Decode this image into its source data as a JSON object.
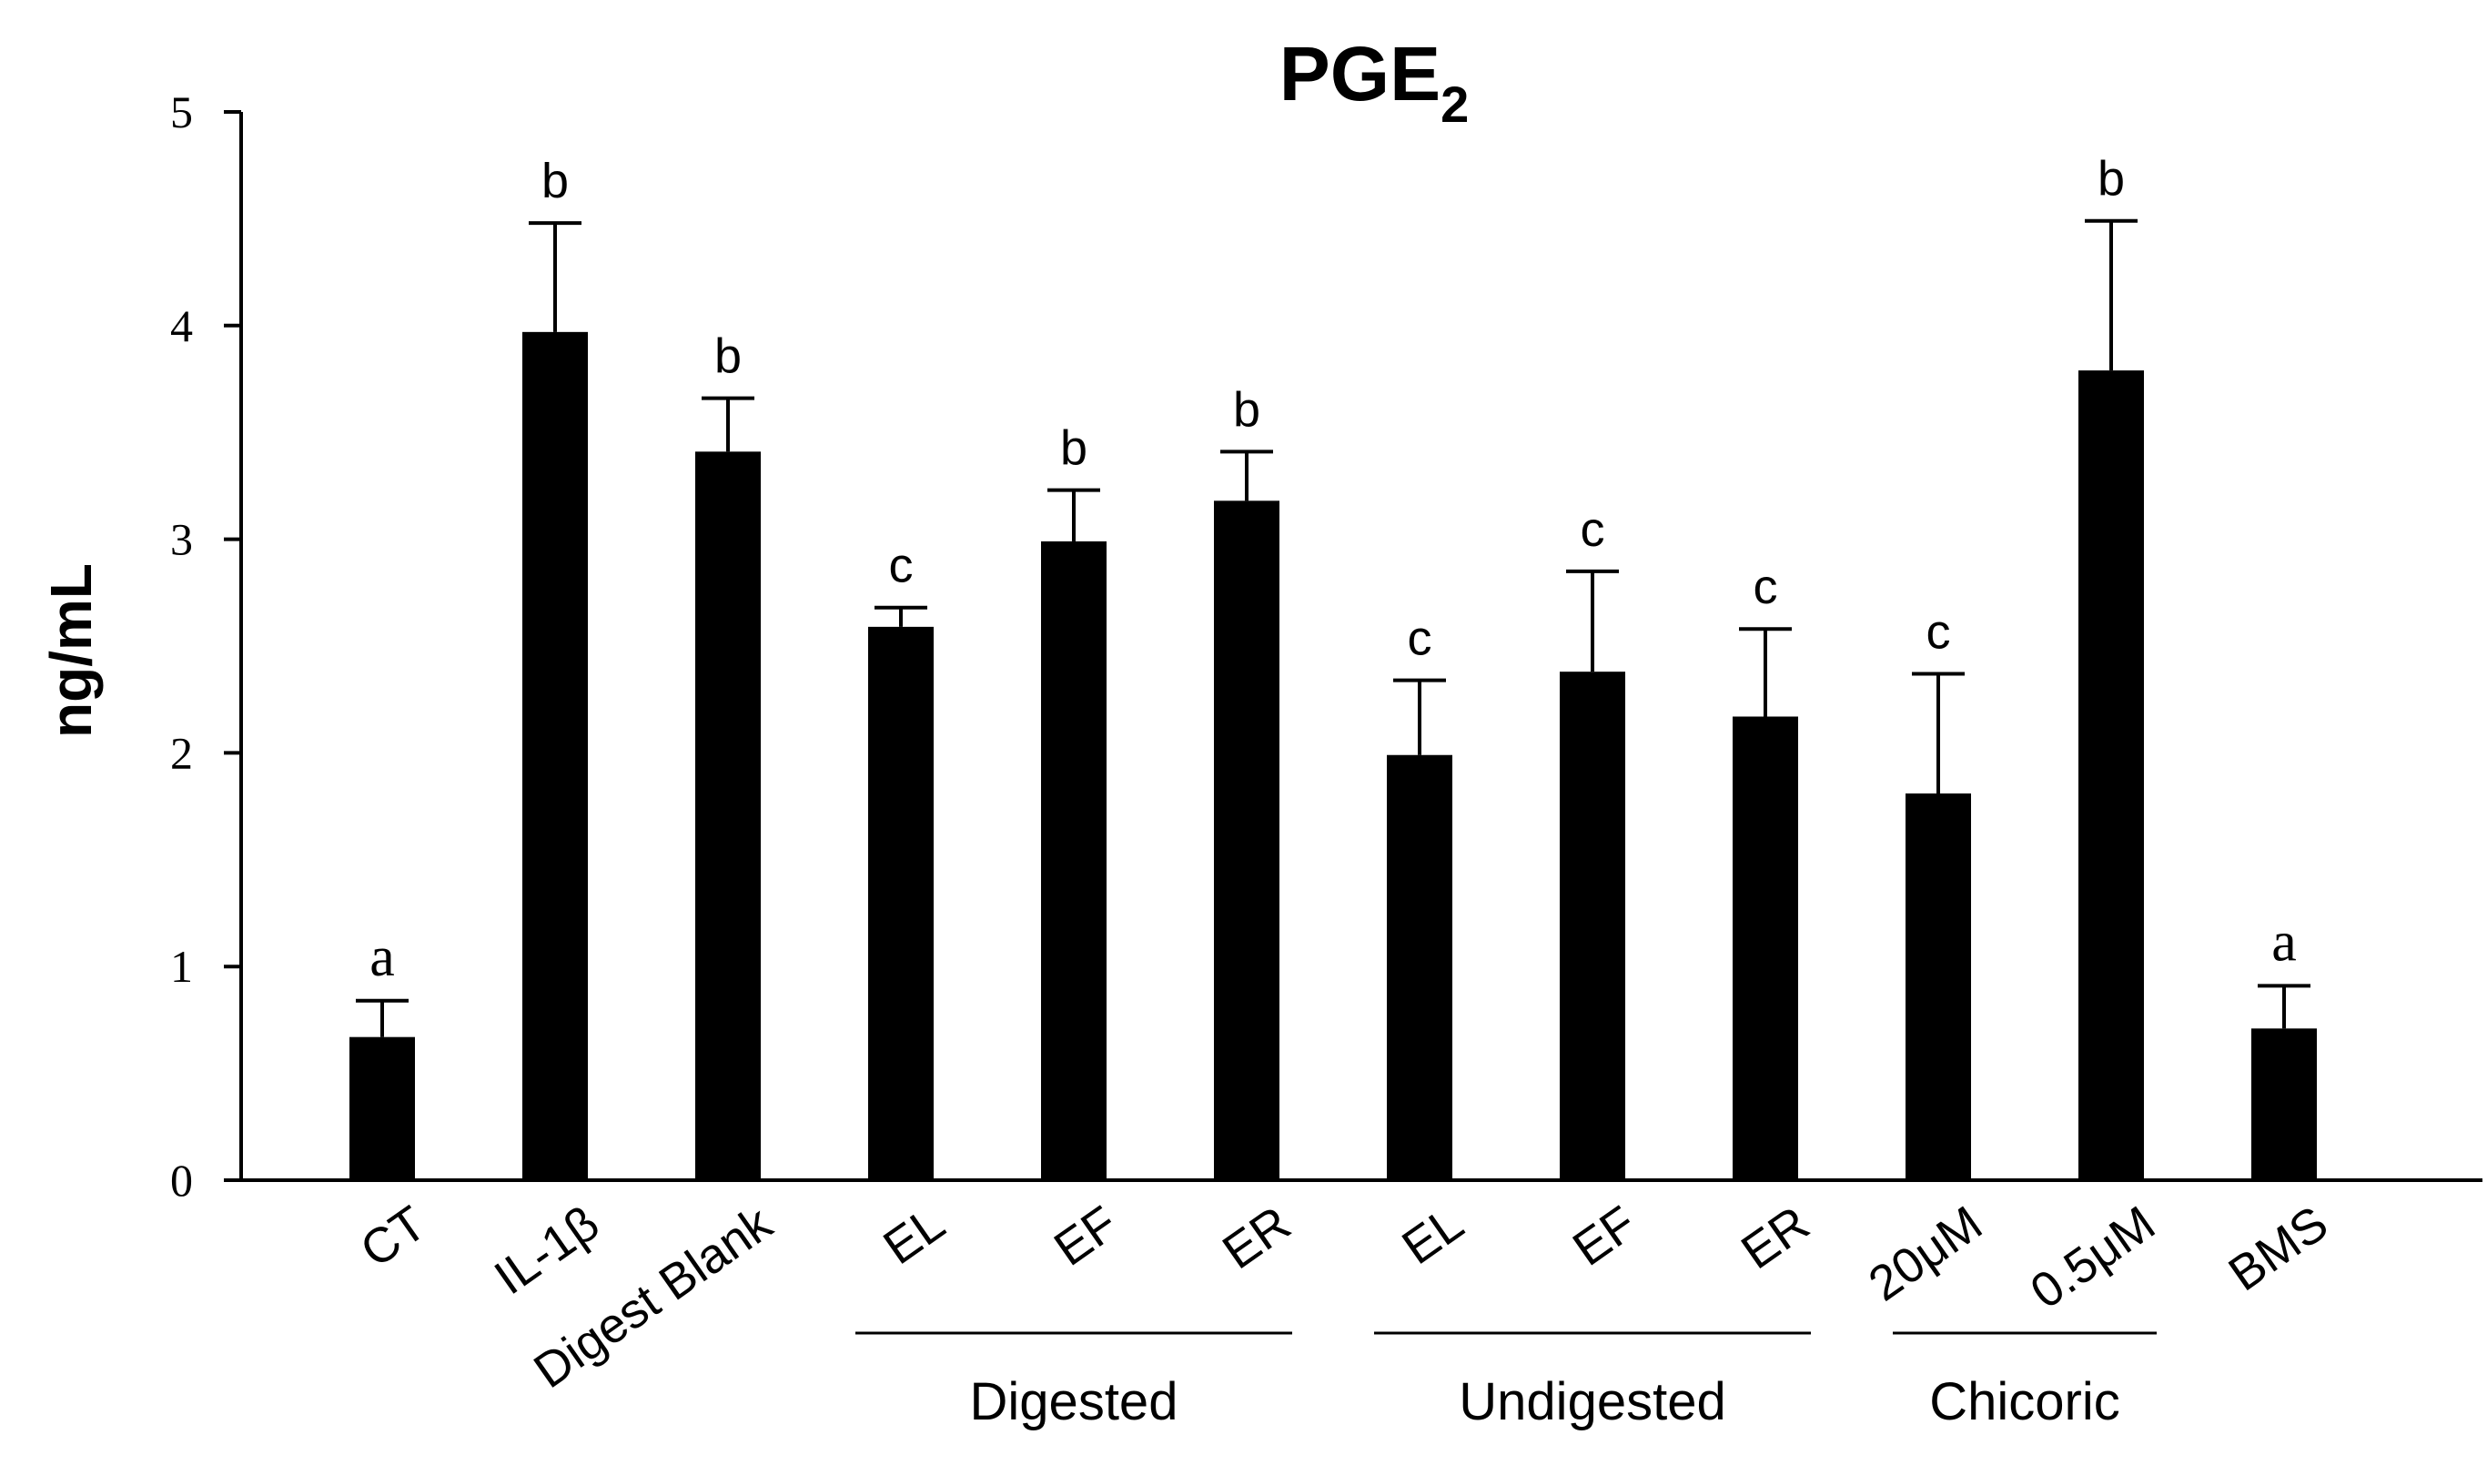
{
  "chart_data": {
    "type": "bar",
    "title_main": "PGE",
    "title_sub": "2",
    "xlabel": "",
    "ylabel": "ng/mL",
    "ylim": [
      0,
      5
    ],
    "yticks": [
      "0",
      "1",
      "2",
      "3",
      "4",
      "5"
    ],
    "categories": [
      "CT",
      "IL-1β",
      "Digest Blank",
      "EL",
      "EF",
      "ER",
      "EL",
      "EF",
      "ER",
      "20μM",
      "0.5μM",
      "BMS"
    ],
    "values": [
      0.67,
      3.97,
      3.41,
      2.59,
      2.99,
      3.18,
      1.99,
      2.38,
      2.17,
      1.81,
      3.79,
      0.71
    ],
    "errors": [
      0.17,
      0.51,
      0.25,
      0.09,
      0.24,
      0.23,
      0.35,
      0.47,
      0.41,
      0.56,
      0.7,
      0.2
    ],
    "significance": [
      "a",
      "b",
      "b",
      "c",
      "b",
      "b",
      "c",
      "c",
      "c",
      "c",
      "b",
      "a"
    ],
    "groups": [
      {
        "label": "Digested",
        "start": 3,
        "end": 5
      },
      {
        "label": "Undigested",
        "start": 6,
        "end": 8
      },
      {
        "label": "Chicoric",
        "start": 9,
        "end": 10
      }
    ],
    "bar_color": "#000000"
  }
}
